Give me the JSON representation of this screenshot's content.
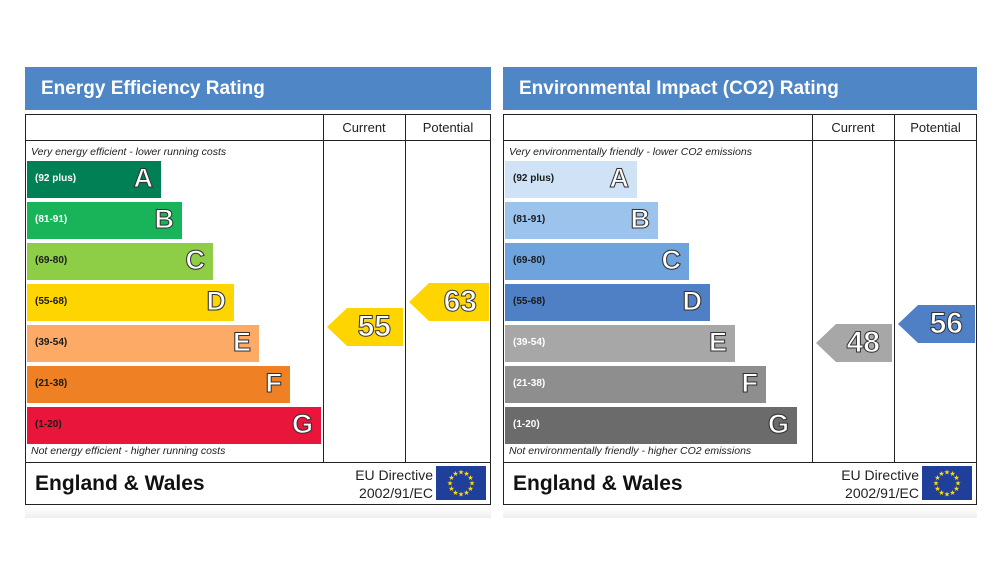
{
  "chart_data": [
    {
      "type": "table",
      "title": "Energy Efficiency Rating",
      "columns": [
        "Current",
        "Potential"
      ],
      "top_caption": "Very energy efficient - lower running costs",
      "bottom_caption": "Not energy efficient - higher running costs",
      "bands": [
        {
          "letter": "A",
          "range": "(92 plus)",
          "color": "#008054"
        },
        {
          "letter": "B",
          "range": "(81-91)",
          "color": "#19b459"
        },
        {
          "letter": "C",
          "range": "(69-80)",
          "color": "#8dce46"
        },
        {
          "letter": "D",
          "range": "(55-68)",
          "color": "#ffd500"
        },
        {
          "letter": "E",
          "range": "(39-54)",
          "color": "#fcaa65"
        },
        {
          "letter": "F",
          "range": "(21-38)",
          "color": "#ef8023"
        },
        {
          "letter": "G",
          "range": "(1-20)",
          "color": "#e9153b"
        }
      ],
      "current": 55,
      "potential": 63,
      "current_color": "#ffd500",
      "potential_color": "#ffd500",
      "region": "England & Wales",
      "directive_line1": "EU Directive",
      "directive_line2": "2002/91/EC"
    },
    {
      "type": "table",
      "title": "Environmental Impact (CO2) Rating",
      "columns": [
        "Current",
        "Potential"
      ],
      "top_caption": "Very environmentally friendly - lower CO2 emissions",
      "bottom_caption": "Not environmentally friendly - higher CO2 emissions",
      "bands": [
        {
          "letter": "A",
          "range": "(92 plus)",
          "color": "#cfe2f6"
        },
        {
          "letter": "B",
          "range": "(81-91)",
          "color": "#9cc3ec"
        },
        {
          "letter": "C",
          "range": "(69-80)",
          "color": "#6fa3dd"
        },
        {
          "letter": "D",
          "range": "(55-68)",
          "color": "#4f80c6"
        },
        {
          "letter": "E",
          "range": "(39-54)",
          "color": "#a7a7a7"
        },
        {
          "letter": "F",
          "range": "(21-38)",
          "color": "#8e8e8e"
        },
        {
          "letter": "G",
          "range": "(1-20)",
          "color": "#6b6b6b"
        }
      ],
      "current": 48,
      "potential": 56,
      "current_color": "#a7a7a7",
      "potential_color": "#4f80c6",
      "region": "England & Wales",
      "directive_line1": "EU Directive",
      "directive_line2": "2002/91/EC"
    }
  ]
}
